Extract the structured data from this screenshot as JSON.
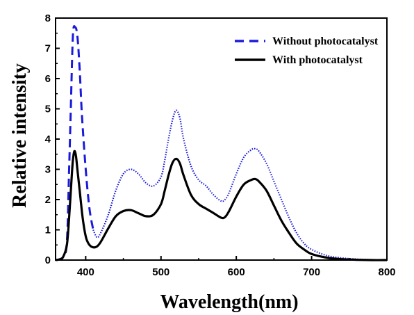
{
  "chart_data": {
    "type": "line",
    "xlabel": "Wavelength(nm)",
    "ylabel": "Relative intensity",
    "xlim": [
      360,
      800
    ],
    "ylim": [
      0,
      8
    ],
    "x_ticks": [
      400,
      500,
      600,
      700,
      800
    ],
    "y_ticks": [
      0,
      1,
      2,
      3,
      4,
      5,
      6,
      7,
      8
    ],
    "grid": false,
    "legend_position": "top-right",
    "series": [
      {
        "name": "Without photocatalyst",
        "color": "#1a1adc",
        "style": "dashed-then-dotted",
        "x": [
          360,
          370,
          375,
          378,
          380,
          383,
          386,
          389,
          392,
          395,
          400,
          405,
          410,
          415,
          420,
          430,
          440,
          450,
          460,
          470,
          480,
          490,
          500,
          505,
          510,
          515,
          520,
          525,
          530,
          540,
          550,
          560,
          570,
          580,
          585,
          590,
          600,
          610,
          620,
          625,
          630,
          640,
          650,
          660,
          670,
          680,
          690,
          700,
          720,
          740,
          760,
          780,
          800
        ],
        "values": [
          0.0,
          0.1,
          0.6,
          3.0,
          4.8,
          7.4,
          7.7,
          7.4,
          6.3,
          4.8,
          3.0,
          1.7,
          1.0,
          0.75,
          0.9,
          1.5,
          2.3,
          2.85,
          3.0,
          2.85,
          2.55,
          2.45,
          2.75,
          3.3,
          4.0,
          4.6,
          4.95,
          4.7,
          4.0,
          3.1,
          2.65,
          2.45,
          2.15,
          1.95,
          2.0,
          2.2,
          2.85,
          3.4,
          3.65,
          3.68,
          3.6,
          3.2,
          2.6,
          2.0,
          1.4,
          0.9,
          0.55,
          0.35,
          0.15,
          0.07,
          0.03,
          0.01,
          0.0
        ]
      },
      {
        "name": "With photocatalyst",
        "color": "#000000",
        "style": "solid",
        "x": [
          360,
          365,
          370,
          375,
          378,
          381,
          383,
          385,
          387,
          389,
          392,
          395,
          398,
          401,
          405,
          410,
          415,
          420,
          430,
          440,
          450,
          460,
          470,
          480,
          490,
          500,
          505,
          510,
          515,
          520,
          525,
          530,
          540,
          550,
          560,
          570,
          580,
          585,
          590,
          600,
          610,
          620,
          625,
          630,
          640,
          650,
          660,
          670,
          680,
          690,
          700,
          720,
          740,
          760,
          780,
          800
        ],
        "values": [
          0.0,
          0.02,
          0.1,
          0.5,
          1.4,
          2.6,
          3.3,
          3.6,
          3.45,
          3.0,
          2.3,
          1.6,
          1.05,
          0.7,
          0.5,
          0.42,
          0.45,
          0.6,
          1.05,
          1.45,
          1.62,
          1.65,
          1.55,
          1.45,
          1.5,
          1.85,
          2.3,
          2.8,
          3.2,
          3.35,
          3.2,
          2.8,
          2.15,
          1.85,
          1.7,
          1.55,
          1.4,
          1.42,
          1.6,
          2.1,
          2.5,
          2.65,
          2.68,
          2.6,
          2.3,
          1.8,
          1.3,
          0.9,
          0.55,
          0.35,
          0.2,
          0.08,
          0.03,
          0.01,
          0.0,
          0.0
        ]
      }
    ]
  }
}
